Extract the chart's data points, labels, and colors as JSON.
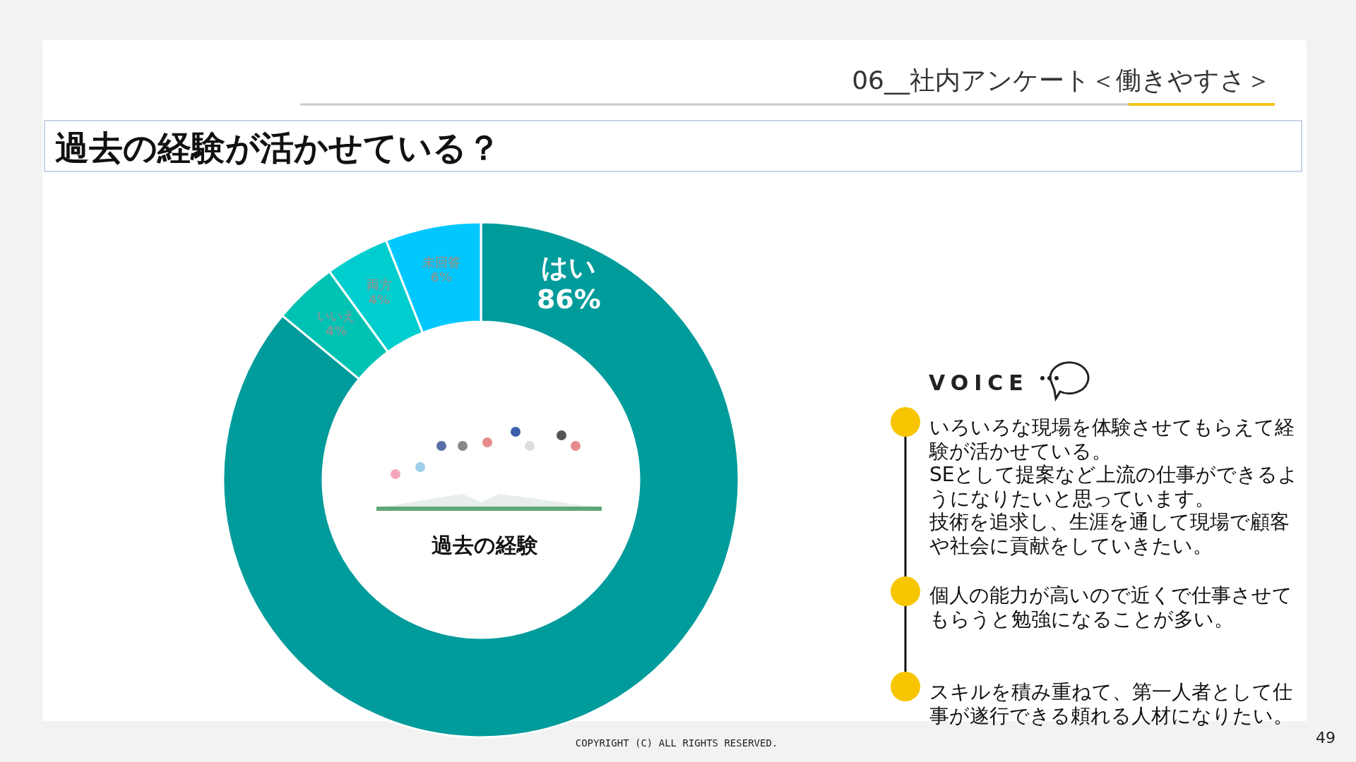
{
  "chart_data": {
    "type": "donut",
    "title": "過去の経験が活かせている？",
    "subtitle": "06__社内アンケート＜働きやすさ＞",
    "categories": [
      "はい",
      "いいえ",
      "両方",
      "未回答"
    ],
    "values": [
      86,
      4,
      4,
      6
    ],
    "value_labels": [
      "86%",
      "4%",
      "4%",
      "6%"
    ],
    "colors": [
      "#009b9b",
      "#00c2b3",
      "#00cdcd",
      "#00c8ff"
    ],
    "annotations": [
      "過去の経験",
      "VOICE",
      "いろいろな現場を体験させてもらえて経験が活かせている。",
      "SEとして提案など上流の仕事ができるようになりたいと思っています。",
      "技術を追求し、生涯を通して現場で顧客や社会に貢献をしていきたい。",
      "個人の能力が高いので近くで仕事させてもらうと勉強になることが多い。",
      "スキルを積み重ねて、第一人者として仕事が遂行できる頼れる人材になりたい。",
      "COPYRIGHT (C) ALL RIGHTS RESERVED.",
      "49"
    ]
  }
}
